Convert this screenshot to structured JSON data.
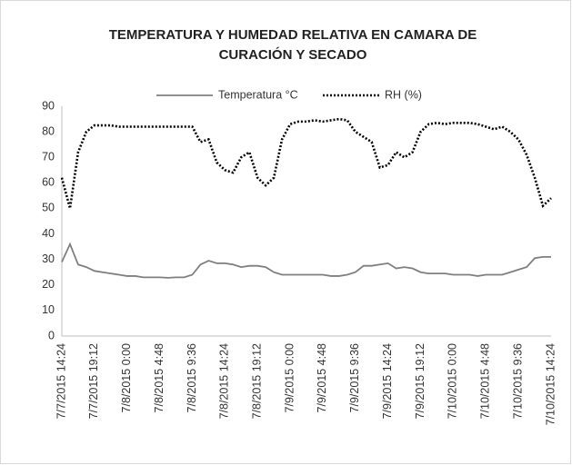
{
  "chart_data": {
    "type": "line",
    "title": "TEMPERATURA Y HUMEDAD RELATIVA EN CAMARA DE CURACIÓN Y SECADO",
    "categories": [
      "7/7/2015 14:24",
      null,
      null,
      null,
      "7/7/2015 19:12",
      null,
      null,
      null,
      "7/8/2015 0:00",
      null,
      null,
      null,
      "7/8/2015 4:48",
      null,
      null,
      null,
      "7/8/2015 9:36",
      null,
      null,
      null,
      "7/8/2015 14:24",
      null,
      null,
      null,
      "7/8/2015 19:12",
      null,
      null,
      null,
      "7/9/2015 0:00",
      null,
      null,
      null,
      "7/9/2015 4:48",
      null,
      null,
      null,
      "7/9/2015 9:36",
      null,
      null,
      null,
      "7/9/2015 14:24",
      null,
      null,
      null,
      "7/9/2015 19:12",
      null,
      null,
      null,
      "7/10/2015 0:00",
      null,
      null,
      null,
      "7/10/2015 4:48",
      null,
      null,
      null,
      "7/10/2015 9:36",
      null,
      null,
      null,
      "7/10/2015 14:24"
    ],
    "series": [
      {
        "name": "Temperatura °C",
        "color": "#7f7f7f",
        "dash": "solid",
        "values": [
          29,
          36,
          28,
          27,
          25.5,
          25,
          24.5,
          24,
          23.5,
          23.5,
          23,
          23,
          23,
          22.8,
          23,
          23,
          24,
          28,
          29.5,
          28.5,
          28.5,
          28,
          27,
          27.5,
          27.5,
          27,
          25,
          24,
          24,
          24,
          24,
          24,
          24,
          23.5,
          23.5,
          24,
          25,
          27.5,
          27.5,
          28,
          28.5,
          26.5,
          27,
          26.5,
          25,
          24.5,
          24.5,
          24.5,
          24,
          24,
          24,
          23.5,
          24,
          24,
          24,
          25,
          26,
          27,
          30.5,
          31,
          31
        ]
      },
      {
        "name": "RH (%)",
        "color": "#000000",
        "dash": "dotted",
        "values": [
          62,
          50,
          72,
          80,
          82.5,
          82.5,
          82.5,
          82,
          82,
          82,
          82,
          82,
          82,
          82,
          82,
          82,
          82,
          76,
          77,
          68,
          65,
          64,
          70,
          72,
          62,
          59,
          62,
          77,
          83,
          84,
          84,
          84.5,
          84,
          84.5,
          85,
          84.5,
          80,
          78,
          76,
          66,
          67,
          72,
          70,
          72,
          80,
          83,
          83.5,
          83,
          83.5,
          83.5,
          83.5,
          83,
          82,
          81,
          82,
          80,
          77,
          71,
          62,
          51,
          54
        ]
      }
    ],
    "ylim": [
      0,
      90
    ],
    "yticks": [
      0,
      10,
      20,
      30,
      40,
      50,
      60,
      70,
      80,
      90
    ],
    "grid": false,
    "legend": "top"
  }
}
